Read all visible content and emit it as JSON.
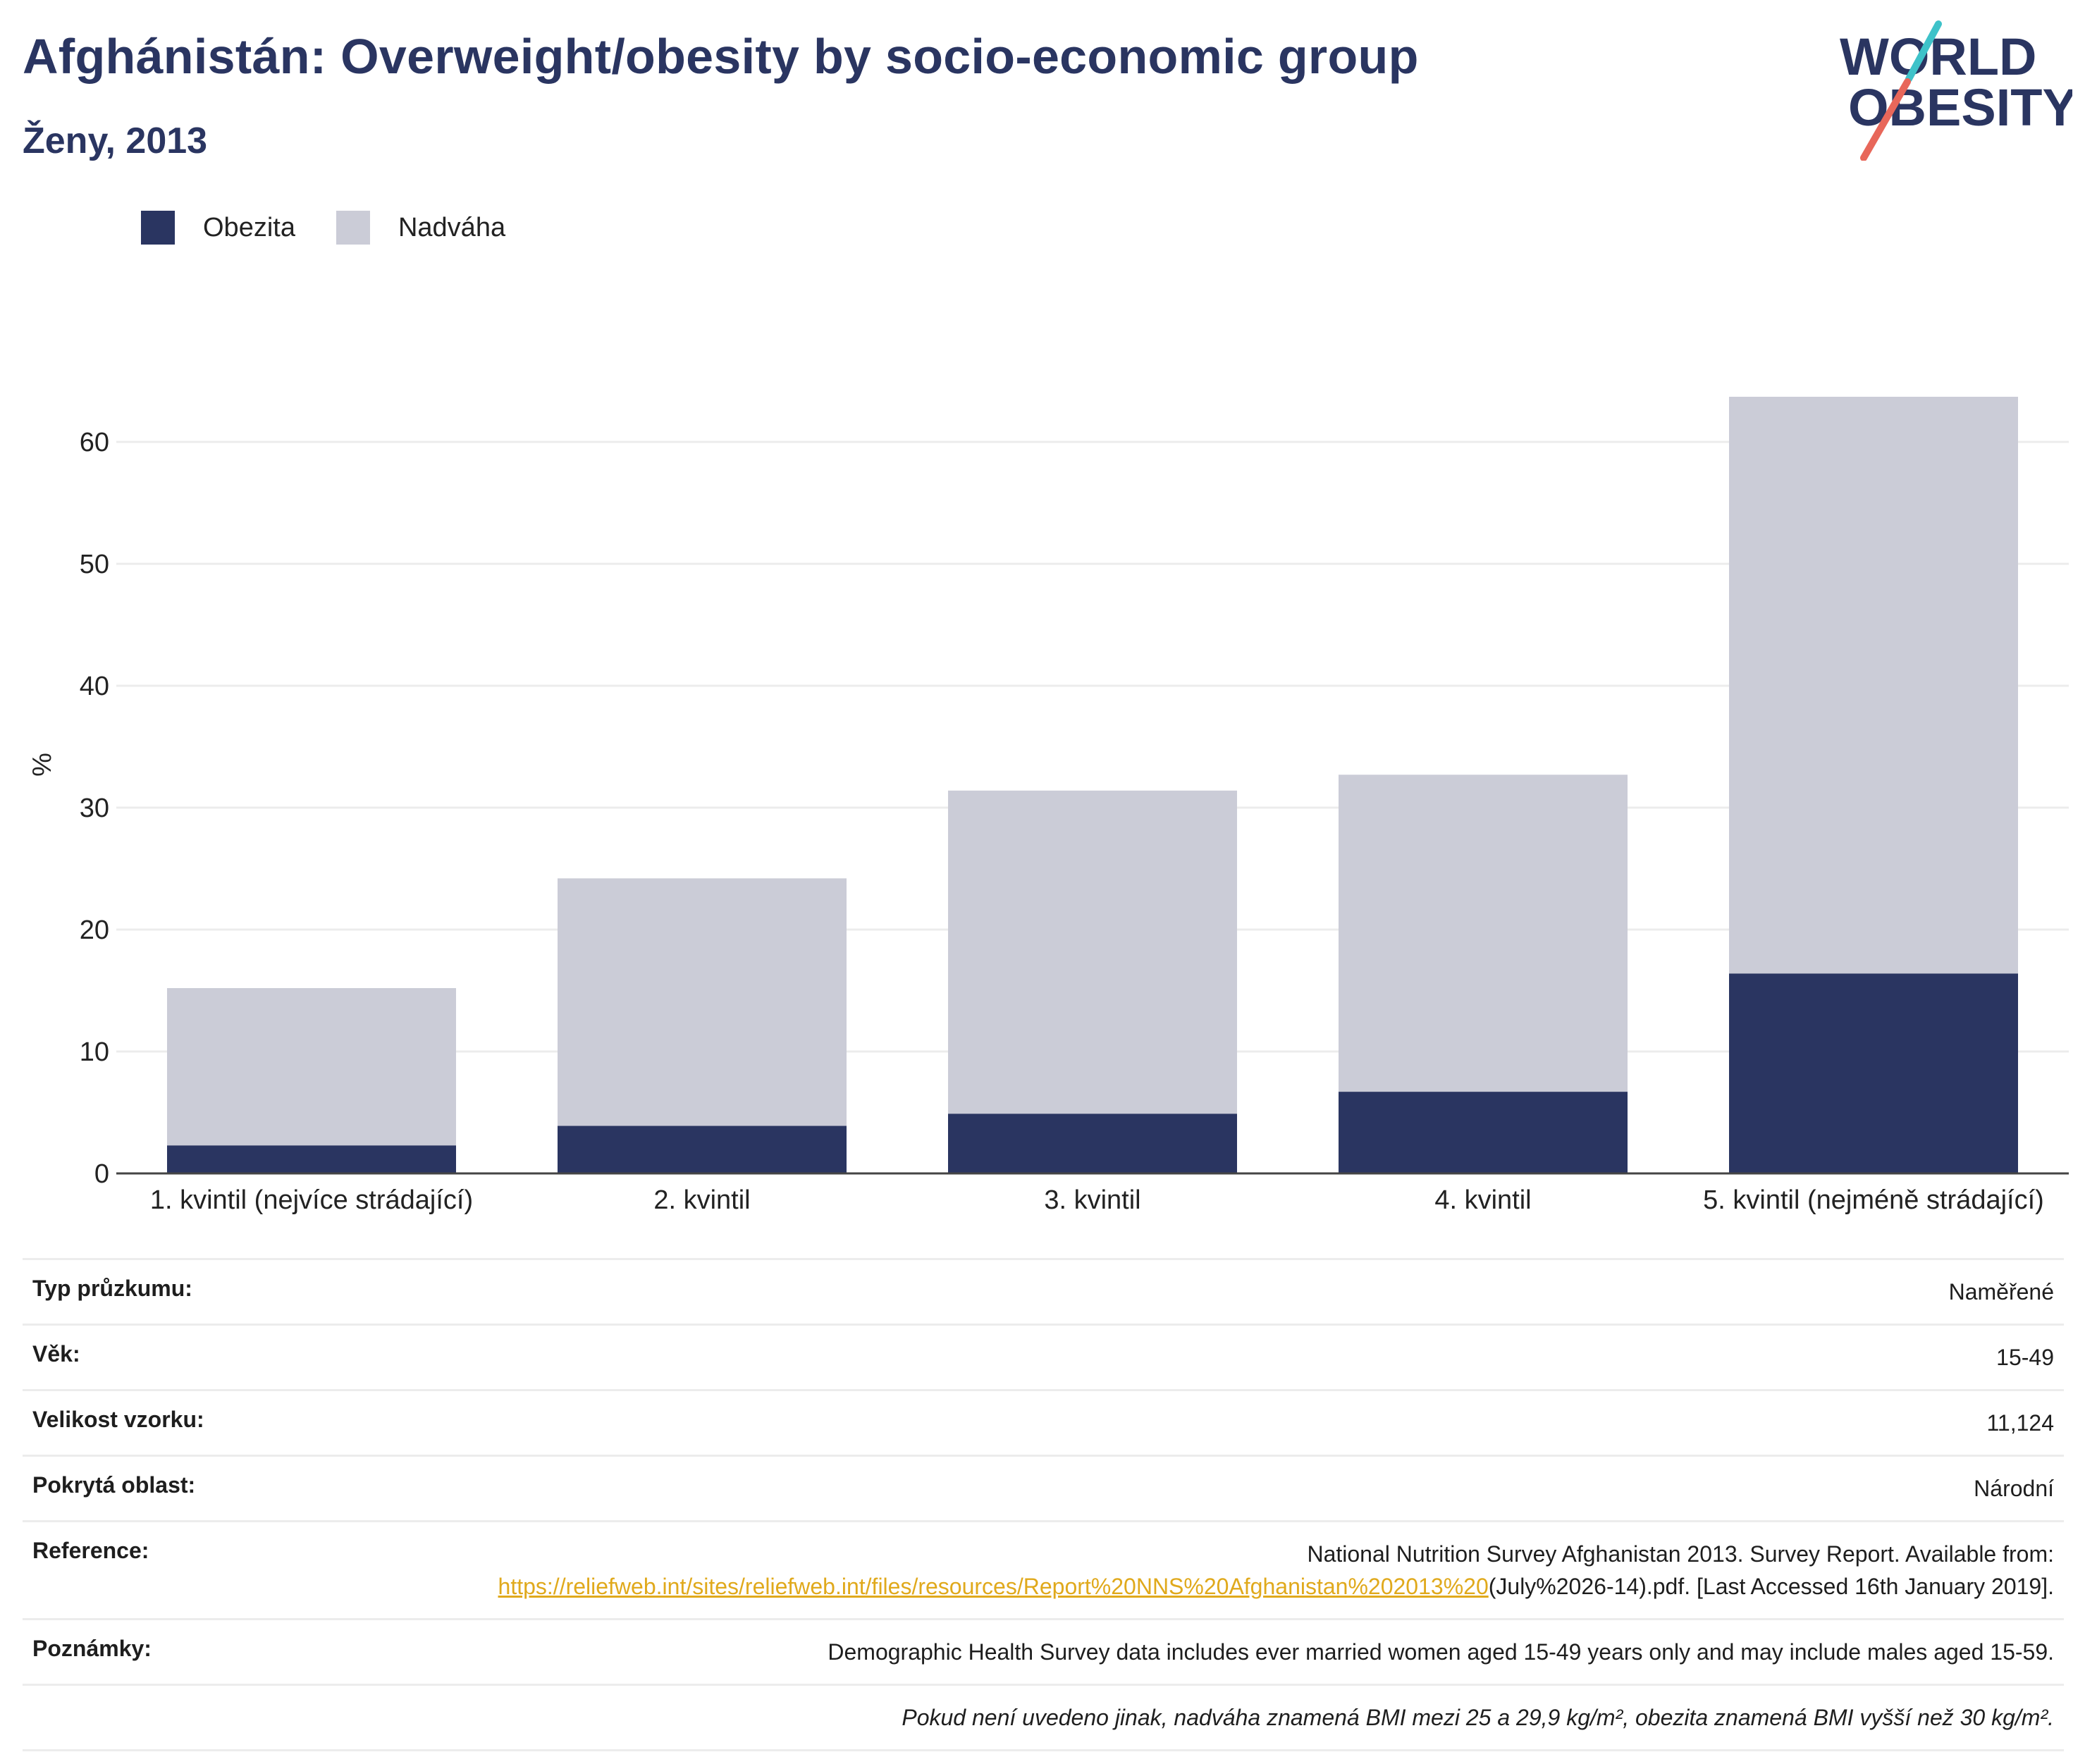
{
  "header": {
    "title": "Afghánistán: Overweight/obesity by socio-economic group",
    "subtitle": "Ženy, 2013"
  },
  "logo": {
    "line1": "WORLD",
    "line2": "OBESITY"
  },
  "colors": {
    "obesity": "#2a3561",
    "overweight": "#cbccd7",
    "title": "#2a3561",
    "link": "#e0a91c",
    "logo_teal": "#3ec2c9",
    "logo_red": "#e8675a"
  },
  "chart_data": {
    "type": "bar",
    "stacked": true,
    "categories": [
      "1. kvintil (nejvíce strádající)",
      "2. kvintil",
      "3. kvintil",
      "4. kvintil",
      "5. kvintil (nejméně strádající)"
    ],
    "series": [
      {
        "name": "Obezita",
        "values": [
          2.3,
          3.9,
          4.9,
          6.7,
          16.4
        ]
      },
      {
        "name": "Nadváha",
        "values": [
          12.9,
          20.3,
          26.5,
          26.0,
          47.3
        ]
      }
    ],
    "ylabel": "%",
    "xlabel": "",
    "ylim": [
      0,
      70
    ],
    "yticks": [
      0,
      10,
      20,
      30,
      40,
      50,
      60
    ],
    "grid": true,
    "legend": "top-left"
  },
  "info": {
    "survey_type": {
      "label": "Typ průzkumu:",
      "value": "Naměřené"
    },
    "age": {
      "label": "Věk:",
      "value": "15-49"
    },
    "sample_size": {
      "label": "Velikost vzorku:",
      "value": "11,124"
    },
    "area": {
      "label": "Pokrytá oblast:",
      "value": "Národní"
    },
    "reference": {
      "label": "Reference:",
      "text_before": "National Nutrition Survey Afghanistan 2013. Survey Report. Available from:",
      "link": "https://reliefweb.int/sites/reliefweb.int/files/resources/Report%20NNS%20Afghanistan%202013%20",
      "text_after": "(July%2026-14).pdf. [Last Accessed 16th January 2019]."
    },
    "notes": {
      "label": "Poznámky:",
      "value": "Demographic Health Survey data includes ever married women aged 15-49 years only and may include males aged 15-59."
    },
    "footnote": "Pokud není uvedeno jinak, nadváha znamená BMI mezi 25 a 29,9 kg/m², obezita znamená BMI vyšší než 30 kg/m²."
  }
}
